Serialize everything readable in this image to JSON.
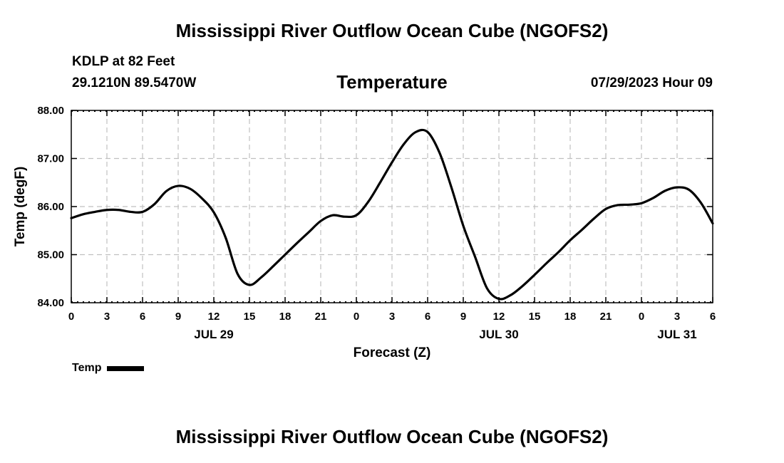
{
  "header": {
    "title": "Mississippi River Outflow Ocean Cube (NGOFS2)",
    "station": "KDLP at 82 Feet",
    "coordinates": "29.1210N  89.5470W",
    "plot_title": "Temperature",
    "forecast_time": "07/29/2023 Hour 09"
  },
  "footer": {
    "title": "Mississippi River Outflow Ocean Cube (NGOFS2)"
  },
  "legend": {
    "label": "Temp"
  },
  "colors": {
    "line": "#000000",
    "grid": "#c0c0c0",
    "background": "#ffffff"
  },
  "chart_data": {
    "type": "line",
    "title": "Temperature",
    "xlabel": "Forecast (Z)",
    "ylabel": "Temp (degF)",
    "xlim": [
      0,
      54
    ],
    "ylim": [
      84.0,
      88.0
    ],
    "x_ticks": [
      0,
      3,
      6,
      9,
      12,
      15,
      18,
      21,
      24,
      27,
      30,
      33,
      36,
      39,
      42,
      45,
      48,
      51,
      54
    ],
    "x_tick_labels": [
      "0",
      "3",
      "6",
      "9",
      "12",
      "15",
      "18",
      "21",
      "0",
      "3",
      "6",
      "9",
      "12",
      "15",
      "18",
      "21",
      "0",
      "3",
      "6"
    ],
    "day_labels": [
      {
        "x": 12,
        "label": "JUL 29"
      },
      {
        "x": 36,
        "label": "JUL 30"
      },
      {
        "x": 51,
        "label": "JUL 31"
      }
    ],
    "y_ticks": [
      84.0,
      85.0,
      86.0,
      87.0,
      88.0
    ],
    "y_tick_labels": [
      "84.00",
      "85.00",
      "86.00",
      "87.00",
      "88.00"
    ],
    "grid": true,
    "legend_position": "bottom-left",
    "series": [
      {
        "name": "Temp",
        "x": [
          0,
          1,
          2,
          3,
          4,
          5,
          6,
          7,
          8,
          9,
          10,
          11,
          12,
          13,
          14,
          15,
          16,
          17,
          18,
          19,
          20,
          21,
          22,
          23,
          24,
          25,
          26,
          27,
          28,
          29,
          30,
          31,
          32,
          33,
          34,
          35,
          36,
          37,
          38,
          39,
          40,
          41,
          42,
          43,
          44,
          45,
          46,
          47,
          48,
          49,
          50,
          51,
          52,
          53,
          54
        ],
        "values": [
          85.76,
          85.84,
          85.89,
          85.93,
          85.93,
          85.89,
          85.89,
          86.05,
          86.32,
          86.43,
          86.37,
          86.17,
          85.88,
          85.35,
          84.6,
          84.37,
          84.53,
          84.76,
          85.0,
          85.24,
          85.47,
          85.7,
          85.82,
          85.79,
          85.82,
          86.1,
          86.5,
          86.92,
          87.3,
          87.55,
          87.55,
          87.12,
          86.4,
          85.6,
          84.95,
          84.3,
          84.08,
          84.16,
          84.35,
          84.58,
          84.82,
          85.05,
          85.3,
          85.52,
          85.75,
          85.95,
          86.03,
          86.04,
          86.07,
          86.18,
          86.33,
          86.4,
          86.35,
          86.08,
          85.65
        ]
      }
    ]
  }
}
